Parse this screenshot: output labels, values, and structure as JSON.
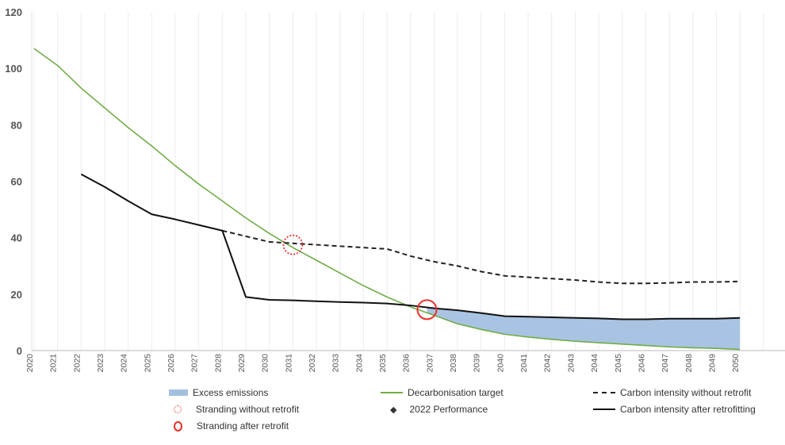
{
  "chart_data": {
    "type": "line",
    "title": "",
    "xlabel": "",
    "ylabel": "",
    "ylim": [
      0,
      120
    ],
    "yticks": [
      "0",
      "20",
      "40",
      "60",
      "80",
      "100",
      "120"
    ],
    "x": [
      "2020",
      "2021",
      "2022",
      "2023",
      "2024",
      "2025",
      "2026",
      "2027",
      "2028",
      "2029",
      "2030",
      "2031",
      "2032",
      "2033",
      "2034",
      "2035",
      "2036",
      "2037",
      "2038",
      "2039",
      "2040",
      "2041",
      "2042",
      "2043",
      "2044",
      "2045",
      "2046",
      "2047",
      "2048",
      "2049",
      "2050"
    ],
    "grid": "vertical",
    "legend_position": "bottom",
    "series": [
      {
        "name": "Decarbonisation target",
        "color": "#70AD47",
        "style": "solid",
        "values": [
          107,
          101,
          93,
          86,
          79,
          72.5,
          65.5,
          59,
          53,
          47,
          41.5,
          36.5,
          32,
          27.5,
          23,
          19,
          15.5,
          12.5,
          9.5,
          7.5,
          5.8,
          4.8,
          4,
          3.3,
          2.8,
          2.3,
          1.8,
          1.3,
          1,
          0.8,
          0.4
        ]
      },
      {
        "name": "Carbon intensity without retrofit",
        "color": "#222222",
        "style": "dashed",
        "values": [
          null,
          null,
          null,
          null,
          null,
          null,
          null,
          null,
          42.5,
          40.5,
          38.5,
          38,
          37.5,
          37,
          36.5,
          36,
          33.5,
          31.5,
          30,
          28,
          26.5,
          26,
          25.5,
          25,
          24.3,
          23.8,
          23.8,
          24,
          24.3,
          24.3,
          24.5
        ]
      },
      {
        "name": "Carbon intensity after retrofitting",
        "color": "#111111",
        "style": "solid",
        "values": [
          null,
          null,
          62.5,
          58,
          53,
          48.3,
          46.5,
          44.5,
          42.5,
          19,
          18,
          17.8,
          17.5,
          17.2,
          17,
          16.7,
          16,
          15,
          14.3,
          13.3,
          12.2,
          12,
          11.8,
          11.6,
          11.4,
          11.1,
          11.1,
          11.3,
          11.3,
          11.3,
          11.6
        ]
      }
    ],
    "excess_emissions": {
      "name": "Excess emissions",
      "color": "#A4C0E0",
      "from_year": "2036.7",
      "between": [
        "Carbon intensity after retrofitting",
        "Decarbonisation target"
      ]
    },
    "markers": [
      {
        "name": "Stranding without retrofit",
        "x": 2031,
        "y": 37.5,
        "color": "#E8312A",
        "style": "dotted-circle"
      },
      {
        "name": "Stranding after retrofit",
        "x": 2036.7,
        "y": 14.5,
        "color": "#E8312A",
        "style": "circle"
      }
    ],
    "legend": [
      {
        "label": "Excess emissions",
        "kind": "area",
        "color": "#A4C0E0"
      },
      {
        "label": "Decarbonisation target",
        "kind": "line",
        "color": "#70AD47"
      },
      {
        "label": "Carbon intensity without retrofit",
        "kind": "dashed",
        "color": "#222222"
      },
      {
        "label": "Stranding without retrofit",
        "kind": "dotted-circle",
        "color": "#E8312A"
      },
      {
        "label": "2022 Performance",
        "kind": "diamond",
        "color": "#111111"
      },
      {
        "label": "Carbon intensity after retrofitting",
        "kind": "line",
        "color": "#111111"
      },
      {
        "label": "Stranding after retrofit",
        "kind": "circle",
        "color": "#E8312A"
      }
    ]
  }
}
